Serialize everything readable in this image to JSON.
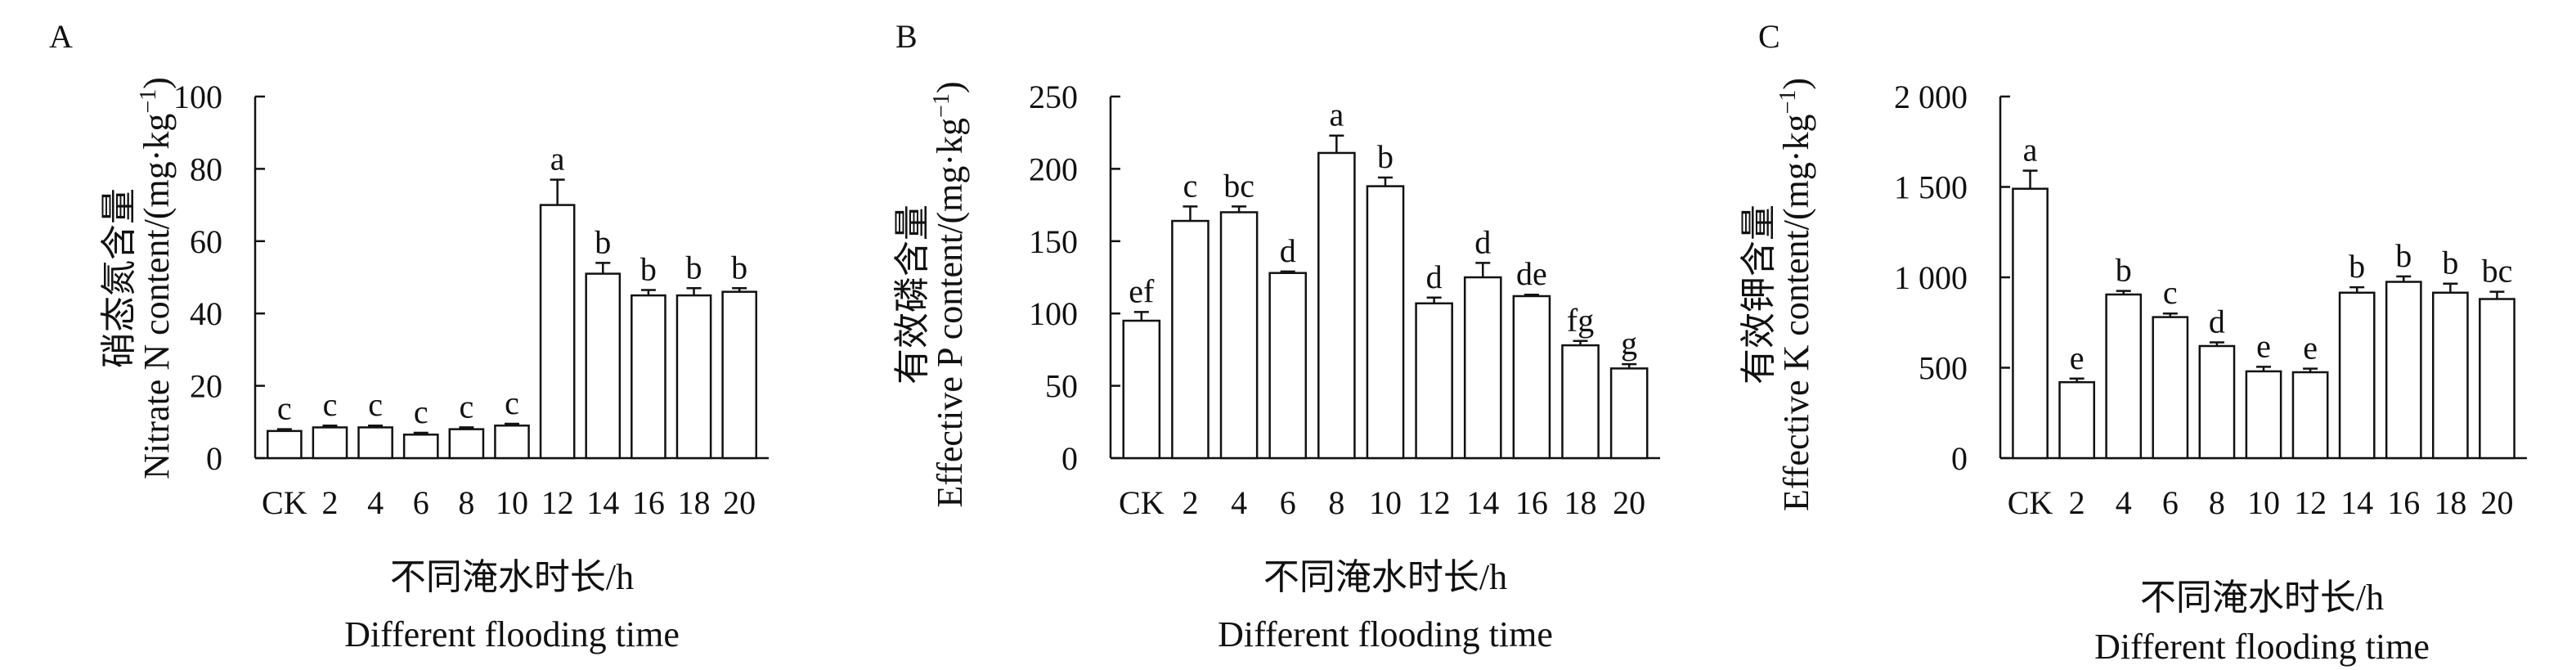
{
  "chart_data": [
    {
      "panel": "A",
      "type": "bar",
      "ylabel_cn": "硝态氮含量",
      "ylabel_en": "Nitrate N content/(mg·kg",
      "ylabel_exp": "−1",
      "ylabel_close": ")",
      "xlabel_cn": "不同淹水时长/h",
      "xlabel_en": "Different flooding time",
      "ylim": [
        0,
        100
      ],
      "yticks": [
        0,
        20,
        40,
        60,
        80,
        100
      ],
      "ytick_labels": [
        "0",
        "20",
        "40",
        "60",
        "80",
        "100"
      ],
      "categories": [
        "CK",
        "2",
        "4",
        "6",
        "8",
        "10",
        "12",
        "14",
        "16",
        "18",
        "20"
      ],
      "values": [
        7.5,
        8.5,
        8.5,
        6.5,
        8,
        9,
        70,
        51,
        45,
        45,
        46
      ],
      "errors": [
        0.5,
        0.5,
        0.5,
        0.5,
        0.5,
        0.5,
        7,
        3,
        1.5,
        2,
        1
      ],
      "labels": [
        "c",
        "c",
        "c",
        "c",
        "c",
        "c",
        "a",
        "b",
        "b",
        "b",
        "b"
      ]
    },
    {
      "panel": "B",
      "type": "bar",
      "ylabel_cn": "有效磷含量",
      "ylabel_en": "Effective P content/(mg·kg",
      "ylabel_exp": "−1",
      "ylabel_close": ")",
      "xlabel_cn": "不同淹水时长/h",
      "xlabel_en": "Different flooding time",
      "ylim": [
        0,
        250
      ],
      "yticks": [
        0,
        50,
        100,
        150,
        200,
        250
      ],
      "ytick_labels": [
        "0",
        "50",
        "100",
        "150",
        "200",
        "250"
      ],
      "categories": [
        "CK",
        "2",
        "4",
        "6",
        "8",
        "10",
        "12",
        "14",
        "16",
        "18",
        "20"
      ],
      "values": [
        95,
        164,
        170,
        128,
        211,
        188,
        107,
        125,
        112,
        78,
        62
      ],
      "errors": [
        6,
        10,
        4,
        1,
        12,
        6,
        4,
        10,
        1,
        3,
        3
      ],
      "labels": [
        "ef",
        "c",
        "bc",
        "d",
        "a",
        "b",
        "d",
        "d",
        "de",
        "fg",
        "g"
      ]
    },
    {
      "panel": "C",
      "type": "bar",
      "ylabel_cn": "有效钾含量",
      "ylabel_en": "Effective K content/(mg·kg",
      "ylabel_exp": "−1",
      "ylabel_close": ")",
      "xlabel_cn": "不同淹水时长/h",
      "xlabel_en": "Different flooding time",
      "ylim": [
        0,
        2000
      ],
      "yticks": [
        0,
        500,
        1000,
        1500,
        2000
      ],
      "ytick_labels": [
        "0",
        "500",
        "1 000",
        "1 500",
        "2 000"
      ],
      "categories": [
        "CK",
        "2",
        "4",
        "6",
        "8",
        "10",
        "12",
        "14",
        "16",
        "18",
        "20"
      ],
      "values": [
        1490,
        420,
        905,
        780,
        620,
        480,
        475,
        915,
        975,
        915,
        880
      ],
      "errors": [
        100,
        20,
        20,
        20,
        20,
        25,
        20,
        30,
        30,
        50,
        40
      ],
      "labels": [
        "a",
        "e",
        "b",
        "c",
        "d",
        "e",
        "e",
        "b",
        "b",
        "b",
        "bc"
      ]
    }
  ]
}
